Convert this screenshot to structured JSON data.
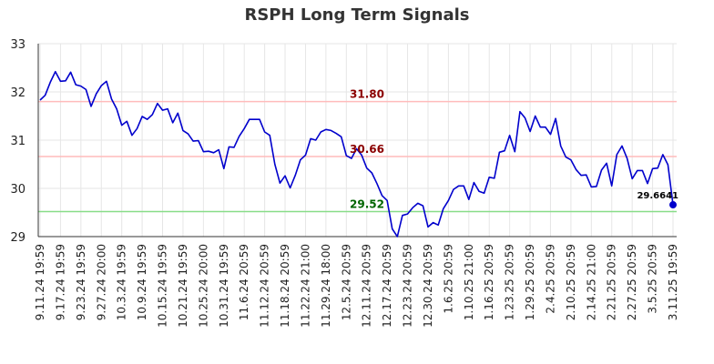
{
  "chart_data": {
    "type": "line",
    "title": "RSPH Long Term Signals",
    "ylim": [
      29,
      33
    ],
    "yticks": [
      "29",
      "30",
      "31",
      "32",
      "33"
    ],
    "grid": true,
    "line_color": "#0000cc",
    "x_tick_labels": [
      "9.11.24 19:59",
      "9.17.24 19:59",
      "9.23.24 19:59",
      "9.27.24 20:00",
      "10.3.24 19:59",
      "10.9.24 19:59",
      "10.15.24 19:59",
      "10.21.24 19:59",
      "10.25.24 20:00",
      "10.31.24 19:59",
      "11.6.24 20:59",
      "11.12.24 20:59",
      "11.18.24 20:59",
      "11.22.24 21:00",
      "11.29.24 18:00",
      "12.5.24 20:59",
      "12.11.24 20:59",
      "12.17.24 20:59",
      "12.23.24 20:59",
      "12.30.24 20:59",
      "1.6.25 20:59",
      "1.10.25 21:00",
      "1.16.25 20:59",
      "1.23.25 20:59",
      "1.29.25 20:59",
      "2.4.25 20:59",
      "2.10.25 20:59",
      "2.14.25 21:00",
      "2.21.25 20:59",
      "2.27.25 20:59",
      "3.5.25 20:59",
      "3.11.25 19:59"
    ],
    "reference_lines": [
      {
        "label": "31.80",
        "value": 31.8,
        "line_color": "#ffbbbb",
        "text_color": "#8b0000"
      },
      {
        "label": "30.66",
        "value": 30.66,
        "line_color": "#ffbbbb",
        "text_color": "#8b0000"
      },
      {
        "label": "29.52",
        "value": 29.52,
        "line_color": "#88dd88",
        "text_color": "#006400"
      }
    ],
    "last_value_label": "29.6641",
    "last_point_color": "#0000cc",
    "values": [
      31.83,
      31.93,
      32.2,
      32.42,
      32.22,
      32.23,
      32.41,
      32.15,
      32.12,
      32.05,
      31.7,
      31.96,
      32.13,
      32.22,
      31.85,
      31.65,
      31.31,
      31.39,
      31.1,
      31.24,
      31.49,
      31.43,
      31.53,
      31.76,
      31.62,
      31.65,
      31.36,
      31.56,
      31.2,
      31.13,
      30.98,
      30.99,
      30.76,
      30.77,
      30.74,
      30.8,
      30.41,
      30.86,
      30.85,
      31.08,
      31.24,
      31.43,
      31.43,
      31.43,
      31.17,
      31.1,
      30.5,
      30.11,
      30.26,
      30.01,
      30.27,
      30.59,
      30.69,
      31.03,
      31.0,
      31.17,
      31.22,
      31.2,
      31.14,
      31.07,
      30.68,
      30.62,
      30.82,
      30.69,
      30.42,
      30.32,
      30.1,
      29.85,
      29.75,
      29.16,
      29.0,
      29.44,
      29.47,
      29.6,
      29.69,
      29.64,
      29.2,
      29.29,
      29.24,
      29.58,
      29.75,
      29.98,
      30.05,
      30.05,
      29.77,
      30.12,
      29.94,
      29.9,
      30.23,
      30.21,
      30.75,
      30.78,
      31.1,
      30.76,
      31.59,
      31.46,
      31.18,
      31.5,
      31.27,
      31.27,
      31.12,
      31.45,
      30.88,
      30.65,
      30.59,
      30.39,
      30.27,
      30.28,
      30.03,
      30.04,
      30.38,
      30.52,
      30.05,
      30.7,
      30.88,
      30.62,
      30.2,
      30.37,
      30.37,
      30.1,
      30.41,
      30.42,
      30.7,
      30.49,
      29.66
    ]
  }
}
